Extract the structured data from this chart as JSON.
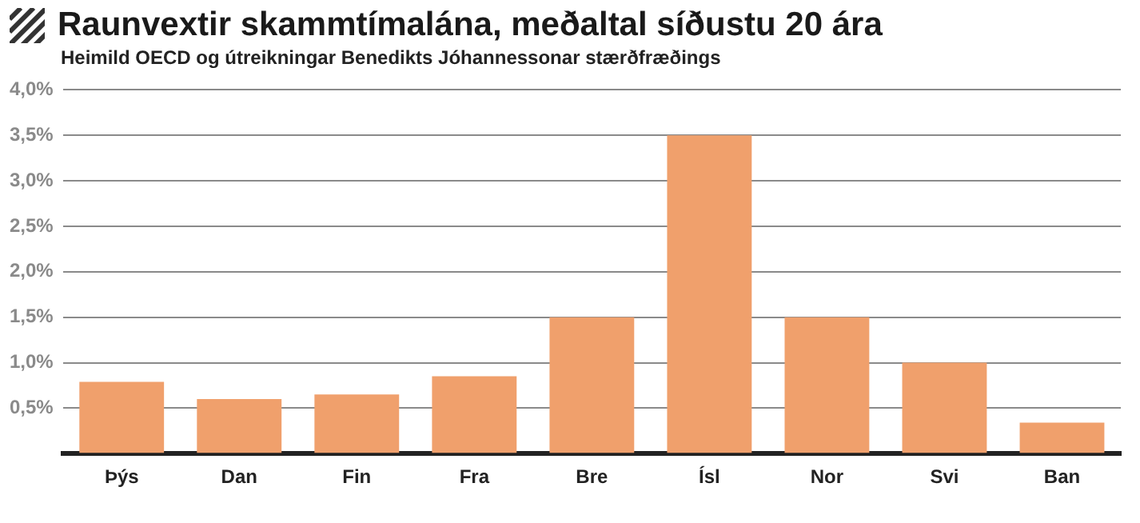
{
  "chart_data": {
    "type": "bar",
    "title": "Raunvextir skammtímalána, meðaltal síðustu 20 ára",
    "subtitle": "Heimild OECD og útreikningar Benedikts Jóhannessonar stærðfræðings",
    "categories": [
      "Þýs",
      "Dan",
      "Fin",
      "Fra",
      "Bre",
      "Ísl",
      "Nor",
      "Svi",
      "Ban"
    ],
    "values": [
      0.79,
      0.6,
      0.65,
      0.85,
      1.5,
      3.5,
      1.5,
      1.0,
      0.34
    ],
    "color": "#f0a06c",
    "ylim": [
      0,
      4
    ],
    "yticks": [
      {
        "value": 0,
        "label": null
      },
      {
        "value": 0.5,
        "label": "0,5%"
      },
      {
        "value": 1,
        "label": "1,0%"
      },
      {
        "value": 1.5,
        "label": "1,5%"
      },
      {
        "value": 2,
        "label": "2,0%"
      },
      {
        "value": 2.5,
        "label": "2,5%"
      },
      {
        "value": 3,
        "label": "3,0%"
      },
      {
        "value": 3.5,
        "label": "3,5%"
      },
      {
        "value": 4,
        "label": "4,0%"
      }
    ],
    "grid": "y",
    "legend": false
  }
}
